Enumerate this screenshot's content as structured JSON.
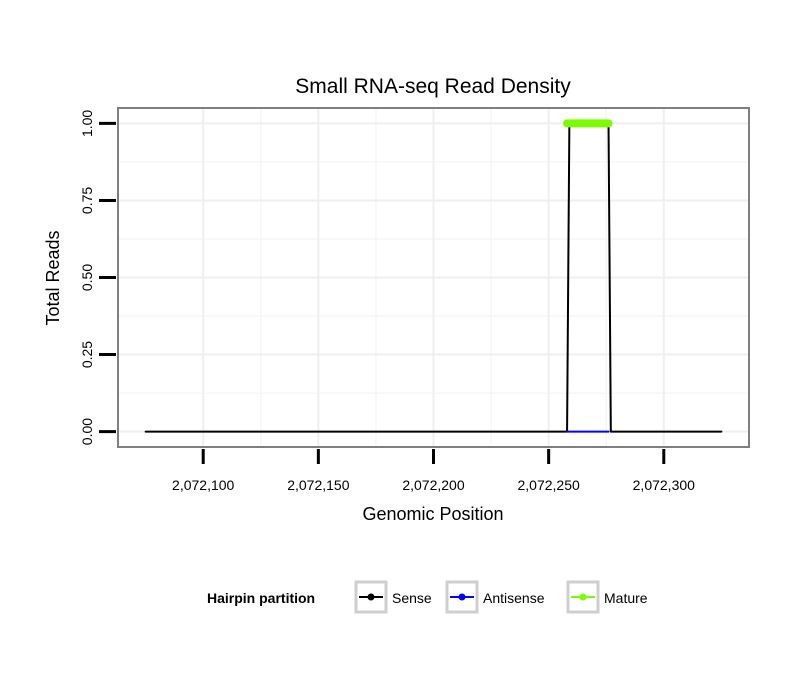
{
  "chart_data": {
    "type": "line",
    "title": "Small RNA-seq Read Density",
    "xlabel": "Genomic Position",
    "ylabel": "Total Reads",
    "xlim": [
      2072063,
      2072337
    ],
    "ylim": [
      -0.05,
      1.05
    ],
    "xticks": [
      2072100,
      2072150,
      2072200,
      2072250,
      2072300
    ],
    "xtick_labels": [
      "2,072,100",
      "2,072,150",
      "2,072,200",
      "2,072,250",
      "2,072,300"
    ],
    "yticks": [
      0,
      0.25,
      0.5,
      0.75,
      1
    ],
    "ytick_labels": [
      "0.00",
      "0.25",
      "0.50",
      "0.75",
      "1.00"
    ],
    "grid": true,
    "legend": {
      "title": "Hairpin partition",
      "placement": "bottom",
      "entries": [
        "Sense",
        "Antisense",
        "Mature"
      ]
    },
    "series": [
      {
        "name": "Sense",
        "color": "#000000",
        "x": [
          2072075,
          2072258,
          2072259,
          2072276,
          2072277,
          2072325
        ],
        "y": [
          0,
          0,
          1,
          1,
          0,
          0
        ]
      },
      {
        "name": "Antisense",
        "color": "#0000ff",
        "x": [
          2072258,
          2072276
        ],
        "y": [
          0,
          0
        ]
      },
      {
        "name": "Mature",
        "color": "#7cfc00",
        "x": [
          2072258,
          2072276
        ],
        "y": [
          1,
          1
        ]
      }
    ]
  }
}
